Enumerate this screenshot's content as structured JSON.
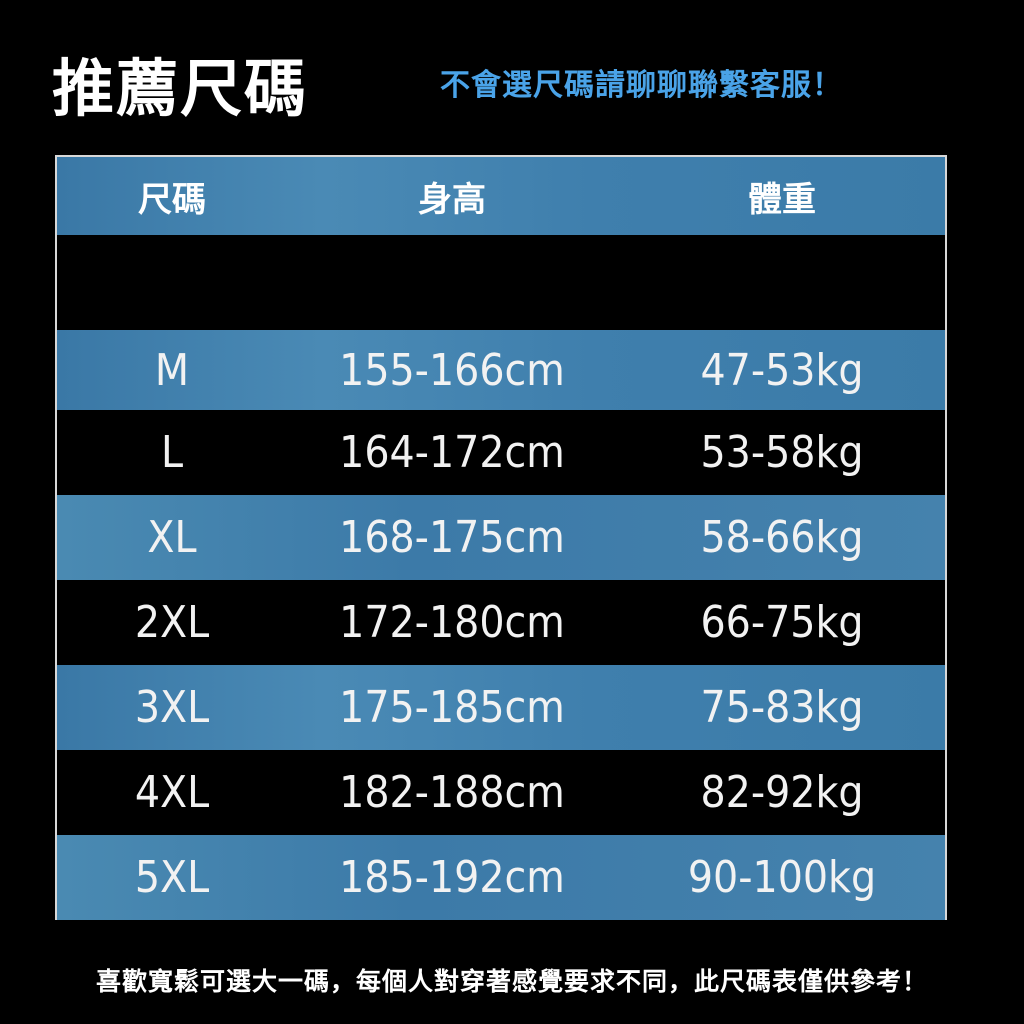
{
  "header": {
    "title": "推薦尺碼",
    "subtitle": "不會選尺碼請聊聊聯繫客服！"
  },
  "table": {
    "columns": [
      "尺碼",
      "身高",
      "體重"
    ],
    "rows": [
      {
        "size": "M",
        "height": "155-166cm",
        "weight": "47-53kg"
      },
      {
        "size": "L",
        "height": "164-172cm",
        "weight": "53-58kg"
      },
      {
        "size": "XL",
        "height": "168-175cm",
        "weight": "58-66kg"
      },
      {
        "size": "2XL",
        "height": "172-180cm",
        "weight": "66-75kg"
      },
      {
        "size": "3XL",
        "height": "175-185cm",
        "weight": "75-83kg"
      },
      {
        "size": "4XL",
        "height": "182-188cm",
        "weight": "82-92kg"
      },
      {
        "size": "5XL",
        "height": "185-192cm",
        "weight": "90-100kg"
      }
    ],
    "colors": {
      "row_blue": "#3f7fab",
      "row_black": "#000000",
      "accent": "#4aa3e8"
    }
  },
  "footer": {
    "note": "喜歡寬鬆可選大一碼，每個人對穿著感覺要求不同，此尺碼表僅供參考！"
  }
}
